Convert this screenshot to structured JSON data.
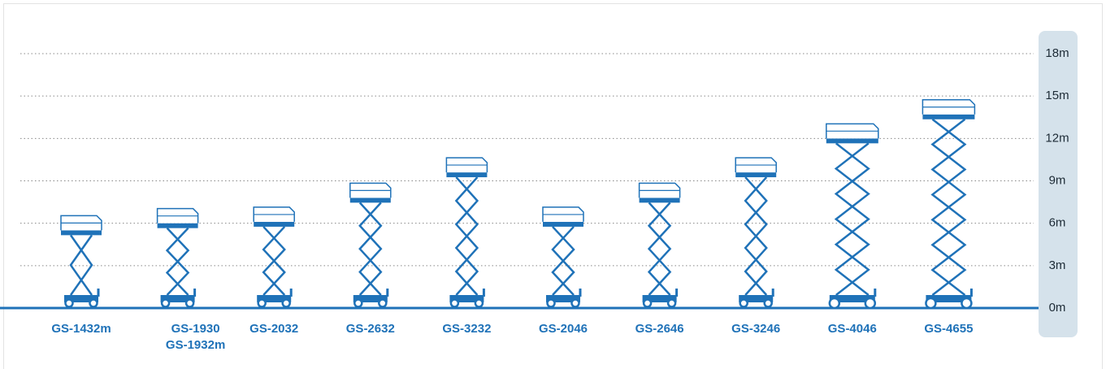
{
  "chart_data": {
    "type": "scissor-lift",
    "categories": [
      "GS-1432m",
      [
        "GS-1930",
        "GS-1932m"
      ],
      "GS-2032",
      "GS-2632",
      "GS-3232",
      "GS-2046",
      "GS-2646",
      "GS-3246",
      "GS-4046",
      "GS-4655"
    ],
    "values": [
      5.5,
      6.0,
      6.1,
      7.8,
      9.6,
      6.1,
      7.8,
      9.6,
      12.0,
      13.7
    ],
    "color": "#1f72b8",
    "ylim": [
      0,
      18
    ],
    "yticks": [
      {
        "value": 0,
        "label": "0m"
      },
      {
        "value": 3,
        "label": "3m"
      },
      {
        "value": 6,
        "label": "6m"
      },
      {
        "value": 9,
        "label": "9m"
      },
      {
        "value": 12,
        "label": "12m"
      },
      {
        "value": 15,
        "label": "15m"
      },
      {
        "value": 18,
        "label": "18m"
      }
    ],
    "grid": true
  }
}
